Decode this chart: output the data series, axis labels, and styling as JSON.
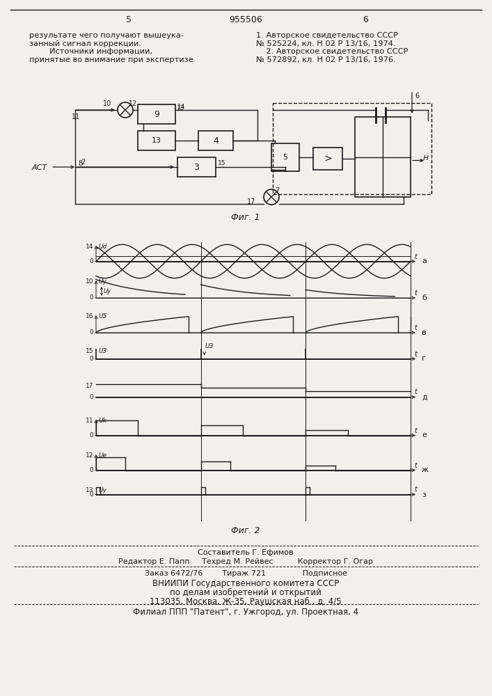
{
  "bg_color": "#f2f0eb",
  "line_color": "#1a1a1a",
  "page_left": "5",
  "page_center": "955506",
  "page_right": "6",
  "text_left": "результате чего получают вышеука-\nзанный сигнал коррекции.\n        Источники информации,\nпринятые во внимание при экспертизе",
  "text_right": "1. Авторское свидетельство СССР\n№ 525224, кл. Н 02 Р 13/16, 1974.\n    2. Авторское свидетельство СССР\n№ 572892, кл. Н 02 Р 13/16, 1976.",
  "fig1_caption": "Фиг. 1",
  "fig2_caption": "Фиг. 2",
  "footer_author": "Составитель Г. Ефимов",
  "footer_editor": "Редактор Е. Папп     Техред М. Рейвес          Корректор Г. Огар",
  "footer_order": "Заказ 6472/76        Тираж 721               Подписное",
  "footer_org1": "ВНИИПИ Государственного комитета СССР",
  "footer_org2": "по делам изобретений и открытий",
  "footer_org3": "113035, Москва, Ж-35, Раушская наб., д. 4/5",
  "footer_branch": "Филиал ППП \"Патент\", г. Ужгород, ул. Проектная, 4"
}
